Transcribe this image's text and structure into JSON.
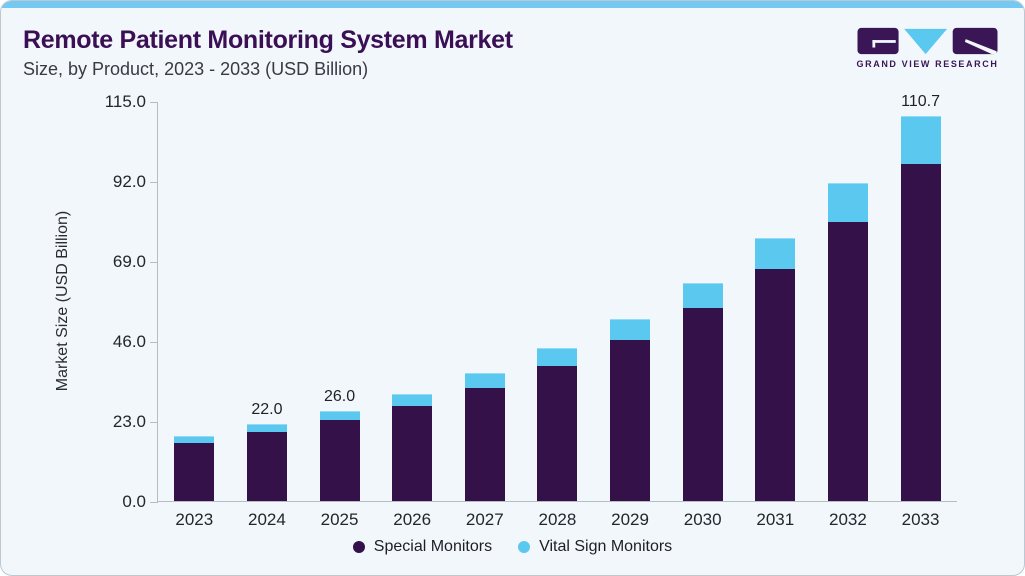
{
  "header": {
    "title": "Remote Patient Monitoring System Market",
    "subtitle": "Size, by Product, 2023 - 2033 (USD Billion)",
    "logo_text": "GRAND VIEW RESEARCH"
  },
  "colors": {
    "accent_bar": "#74c9f0",
    "card_background": "#f1f7fb",
    "title_text": "#3a0f55",
    "special_monitors": "#341249",
    "vital_sign_monitors": "#5bc8f0",
    "axis_line": "#b4bcc4",
    "axis_text": "#23262e",
    "logo_purple": "#3a1657",
    "logo_cyan": "#5bc8f0"
  },
  "chart_data": {
    "type": "bar",
    "stacked": true,
    "title": "Remote Patient Monitoring System Market Size, by Product, 2023 - 2033 (USD Billion)",
    "xlabel": "",
    "ylabel": "Market Size (USD Billion)",
    "ylim": [
      0,
      115
    ],
    "yticks": [
      115.0,
      92.0,
      69.0,
      46.0,
      23.0,
      0.0
    ],
    "grid": false,
    "legend_position": "bottom",
    "categories": [
      "2023",
      "2024",
      "2025",
      "2026",
      "2027",
      "2028",
      "2029",
      "2030",
      "2031",
      "2032",
      "2033"
    ],
    "series": [
      {
        "name": "Special Monitors",
        "color": "#341249",
        "values": [
          16.8,
          19.7,
          23.2,
          27.4,
          32.5,
          38.7,
          46.2,
          55.5,
          66.6,
          80.2,
          96.9
        ]
      },
      {
        "name": "Vital Sign Monitors",
        "color": "#5bc8f0",
        "values": [
          1.8,
          2.3,
          2.8,
          3.5,
          4.3,
          5.2,
          6.2,
          7.3,
          9.0,
          11.3,
          13.8
        ]
      }
    ],
    "totals": [
      18.6,
      22.0,
      26.0,
      30.9,
      36.8,
      43.9,
      52.4,
      62.8,
      75.6,
      91.5,
      110.7
    ],
    "bar_labels": {
      "2024": "22.0",
      "2025": "26.0",
      "2033": "110.7"
    }
  }
}
